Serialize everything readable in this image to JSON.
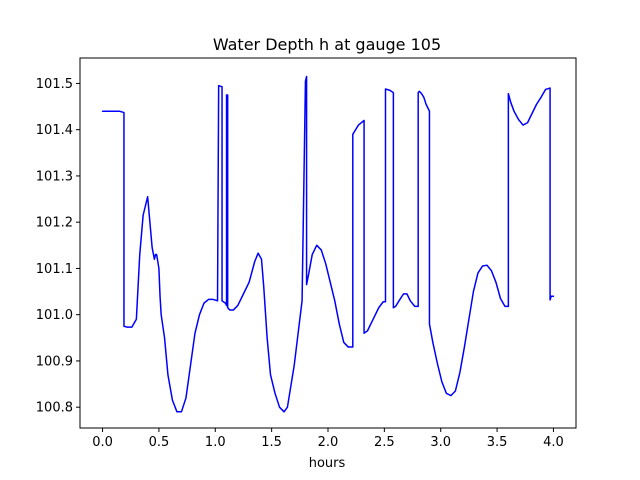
{
  "chart_data": {
    "type": "line",
    "title": "Water Depth h at gauge 105",
    "xlabel": "hours",
    "ylabel": "",
    "xlim": [
      -0.2,
      4.2
    ],
    "ylim": [
      100.755,
      101.555
    ],
    "xticks": [
      0.0,
      0.5,
      1.0,
      1.5,
      2.0,
      2.5,
      3.0,
      3.5,
      4.0
    ],
    "xtick_labels": [
      "0.0",
      "0.5",
      "1.0",
      "1.5",
      "2.0",
      "2.5",
      "3.0",
      "3.5",
      "4.0"
    ],
    "yticks": [
      100.8,
      100.9,
      101.0,
      101.1,
      101.2,
      101.3,
      101.4,
      101.5
    ],
    "ytick_labels": [
      "100.8",
      "100.9",
      "101.0",
      "101.1",
      "101.2",
      "101.3",
      "101.4",
      "101.5"
    ],
    "grid": false,
    "series": [
      {
        "color": "#0000ff",
        "x": [
          0.0,
          0.1,
          0.15,
          0.19,
          0.19,
          0.22,
          0.26,
          0.3,
          0.33,
          0.36,
          0.4,
          0.42,
          0.44,
          0.46,
          0.47,
          0.48,
          0.5,
          0.51,
          0.52,
          0.55,
          0.58,
          0.62,
          0.66,
          0.7,
          0.74,
          0.78,
          0.82,
          0.86,
          0.9,
          0.94,
          0.98,
          1.02,
          1.03,
          1.03,
          1.06,
          1.06,
          1.09,
          1.1,
          1.1,
          1.11,
          1.11,
          1.13,
          1.16,
          1.2,
          1.25,
          1.3,
          1.35,
          1.38,
          1.41,
          1.43,
          1.46,
          1.49,
          1.53,
          1.57,
          1.61,
          1.64,
          1.67,
          1.7,
          1.73,
          1.77,
          1.8,
          1.8,
          1.81,
          1.81,
          1.83,
          1.86,
          1.9,
          1.94,
          1.98,
          2.02,
          2.06,
          2.1,
          2.14,
          2.18,
          2.22,
          2.22,
          2.27,
          2.32,
          2.32,
          2.35,
          2.4,
          2.45,
          2.49,
          2.5,
          2.51,
          2.51,
          2.55,
          2.58,
          2.58,
          2.6,
          2.63,
          2.67,
          2.7,
          2.73,
          2.77,
          2.8,
          2.8,
          2.81,
          2.83,
          2.85,
          2.87,
          2.89,
          2.9,
          2.9,
          2.93,
          2.97,
          3.01,
          3.05,
          3.09,
          3.13,
          3.17,
          3.21,
          3.25,
          3.29,
          3.33,
          3.37,
          3.41,
          3.45,
          3.49,
          3.53,
          3.57,
          3.6,
          3.6,
          3.62,
          3.65,
          3.69,
          3.73,
          3.77,
          3.81,
          3.85,
          3.89,
          3.93,
          3.97,
          3.97,
          3.98,
          4.0
        ],
        "y": [
          101.44,
          101.44,
          101.44,
          101.437,
          100.975,
          100.973,
          100.973,
          100.99,
          101.13,
          101.215,
          101.255,
          101.2,
          101.145,
          101.12,
          101.13,
          101.13,
          101.1,
          101.04,
          101.0,
          100.95,
          100.87,
          100.815,
          100.79,
          100.79,
          100.82,
          100.89,
          100.96,
          101.0,
          101.025,
          101.033,
          101.033,
          101.03,
          101.495,
          101.495,
          101.493,
          101.03,
          101.025,
          101.02,
          101.475,
          101.475,
          101.015,
          101.01,
          101.01,
          101.02,
          101.045,
          101.07,
          101.115,
          101.133,
          101.12,
          101.06,
          100.95,
          100.87,
          100.83,
          100.8,
          100.79,
          100.8,
          100.845,
          100.89,
          100.95,
          101.03,
          101.505,
          101.505,
          101.515,
          101.065,
          101.09,
          101.13,
          101.15,
          101.14,
          101.11,
          101.07,
          101.03,
          100.98,
          100.94,
          100.93,
          100.93,
          101.39,
          101.41,
          101.42,
          100.96,
          100.965,
          100.99,
          101.015,
          101.028,
          101.028,
          101.028,
          101.488,
          101.485,
          101.48,
          101.015,
          101.018,
          101.03,
          101.045,
          101.045,
          101.03,
          101.018,
          101.018,
          101.48,
          101.483,
          101.478,
          101.47,
          101.455,
          101.445,
          101.44,
          100.98,
          100.94,
          100.895,
          100.855,
          100.83,
          100.825,
          100.835,
          100.875,
          100.93,
          100.99,
          101.05,
          101.09,
          101.105,
          101.107,
          101.095,
          101.07,
          101.035,
          101.018,
          101.018,
          101.478,
          101.46,
          101.44,
          101.422,
          101.41,
          101.415,
          101.435,
          101.455,
          101.47,
          101.487,
          101.49,
          101.032,
          101.04,
          101.04
        ]
      }
    ]
  }
}
